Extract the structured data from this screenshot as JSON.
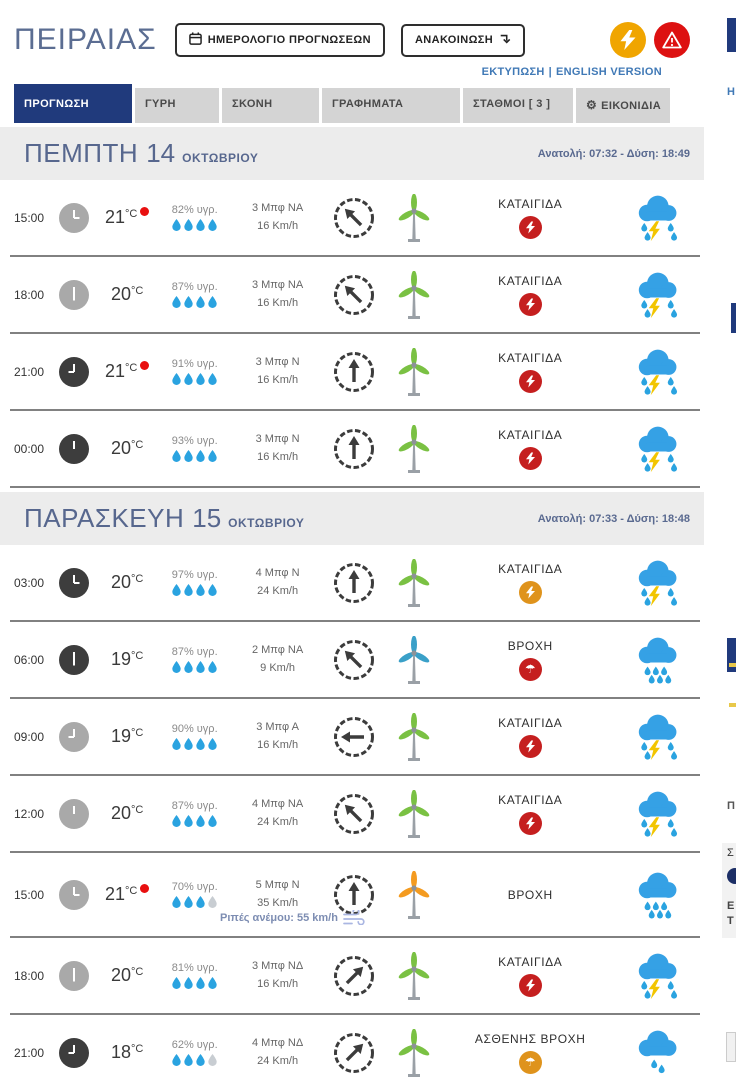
{
  "header": {
    "title": "ΠΕΙΡΑΙΑΣ",
    "calendar_button": "ΗΜΕΡΟΛΟΓΙΟ ΠΡΟΓΝΩΣΕΩΝ",
    "announcement_button": "ΑΝΑΚΟΙΝΩΣΗ",
    "print_link": "ΕΚΤΥΠΩΣΗ",
    "separator": "|",
    "english_link": "ENGLISH VERSION"
  },
  "tabs": [
    {
      "label": "ΠΡΟΓΝΩΣΗ",
      "active": true
    },
    {
      "label": "ΓΥΡΗ",
      "active": false
    },
    {
      "label": "ΣΚΟΝΗ",
      "active": false
    },
    {
      "label": "ΓΡΑΦΗΜΑΤΑ",
      "active": false
    },
    {
      "label": "ΣΤΑΘΜΟΙ [ 3 ]",
      "active": false
    },
    {
      "label": "ΕΙΚΟΝΙΔΙΑ",
      "active": false,
      "gear_icon": true
    }
  ],
  "colors": {
    "navy": "#203a7c",
    "link_blue": "#4079b6",
    "alert_orange": "#f0a500",
    "alert_red": "#dd1111",
    "badge_red": "#c51f1f",
    "badge_orange": "#df931c",
    "drop_blue": "#2aa3e0",
    "drop_gray": "#c8cdd2",
    "cloud_blue": "#35a1e5",
    "bolt_yellow": "#f2c500",
    "turbine_green": "#7ac143",
    "turbine_blue": "#3aa0c8",
    "turbine_orange": "#f49b20",
    "record_red": "#e81010"
  },
  "days": [
    {
      "name": "ΠΕΜΠΤΗ",
      "date_num": "14",
      "month": "ΟΚΤΩΒΡΙΟΥ",
      "sun": "Ανατολή: 07:32 - Δύση: 18:49",
      "rows": [
        {
          "time": "15:00",
          "clock": "day",
          "temp": "21",
          "unit": "°C",
          "record_dot": true,
          "humidity": "82% υγρ.",
          "drops_filled": 4,
          "drops_total": 4,
          "wind1": "3 Μπφ ΝΑ",
          "wind2": "16 Km/h",
          "dir_deg": -45,
          "turbine": "green",
          "condition": "ΚΑΤΑΙΓΙΔΑ",
          "badge": "red",
          "badge_glyph": "bolt",
          "wx": "storm",
          "gust": null
        },
        {
          "time": "18:00",
          "clock": "day",
          "temp": "20",
          "unit": "°C",
          "record_dot": false,
          "humidity": "87% υγρ.",
          "drops_filled": 4,
          "drops_total": 4,
          "wind1": "3 Μπφ ΝΑ",
          "wind2": "16 Km/h",
          "dir_deg": -45,
          "turbine": "green",
          "condition": "ΚΑΤΑΙΓΙΔΑ",
          "badge": "red",
          "badge_glyph": "bolt",
          "wx": "storm",
          "gust": null
        },
        {
          "time": "21:00",
          "clock": "night",
          "temp": "21",
          "unit": "°C",
          "record_dot": true,
          "humidity": "91% υγρ.",
          "drops_filled": 4,
          "drops_total": 4,
          "wind1": "3 Μπφ Ν",
          "wind2": "16 Km/h",
          "dir_deg": 0,
          "turbine": "green",
          "condition": "ΚΑΤΑΙΓΙΔΑ",
          "badge": "red",
          "badge_glyph": "bolt",
          "wx": "storm",
          "gust": null
        },
        {
          "time": "00:00",
          "clock": "night",
          "temp": "20",
          "unit": "°C",
          "record_dot": false,
          "humidity": "93% υγρ.",
          "drops_filled": 4,
          "drops_total": 4,
          "wind1": "3 Μπφ Ν",
          "wind2": "16 Km/h",
          "dir_deg": 0,
          "turbine": "green",
          "condition": "ΚΑΤΑΙΓΙΔΑ",
          "badge": "red",
          "badge_glyph": "bolt",
          "wx": "storm",
          "gust": null
        }
      ]
    },
    {
      "name": "ΠΑΡΑΣΚΕΥΗ",
      "date_num": "15",
      "month": "ΟΚΤΩΒΡΙΟΥ",
      "sun": "Ανατολή: 07:33 - Δύση: 18:48",
      "rows": [
        {
          "time": "03:00",
          "clock": "night",
          "temp": "20",
          "unit": "°C",
          "record_dot": false,
          "humidity": "97% υγρ.",
          "drops_filled": 4,
          "drops_total": 4,
          "wind1": "4 Μπφ Ν",
          "wind2": "24 Km/h",
          "dir_deg": 0,
          "turbine": "green",
          "condition": "ΚΑΤΑΙΓΙΔΑ",
          "badge": "orange",
          "badge_glyph": "bolt",
          "wx": "storm",
          "gust": null
        },
        {
          "time": "06:00",
          "clock": "night",
          "temp": "19",
          "unit": "°C",
          "record_dot": false,
          "humidity": "87% υγρ.",
          "drops_filled": 4,
          "drops_total": 4,
          "wind1": "2 Μπφ ΝΑ",
          "wind2": "9 Km/h",
          "dir_deg": -45,
          "turbine": "blue",
          "condition": "ΒΡΟΧΗ",
          "badge": "red",
          "badge_glyph": "umbrella",
          "wx": "rain",
          "gust": null
        },
        {
          "time": "09:00",
          "clock": "day",
          "temp": "19",
          "unit": "°C",
          "record_dot": false,
          "humidity": "90% υγρ.",
          "drops_filled": 4,
          "drops_total": 4,
          "wind1": "3 Μπφ Α",
          "wind2": "16 Km/h",
          "dir_deg": -90,
          "turbine": "green",
          "condition": "ΚΑΤΑΙΓΙΔΑ",
          "badge": "red",
          "badge_glyph": "bolt",
          "wx": "storm",
          "gust": null
        },
        {
          "time": "12:00",
          "clock": "day",
          "temp": "20",
          "unit": "°C",
          "record_dot": false,
          "humidity": "87% υγρ.",
          "drops_filled": 4,
          "drops_total": 4,
          "wind1": "4 Μπφ ΝΑ",
          "wind2": "24 Km/h",
          "dir_deg": -45,
          "turbine": "green",
          "condition": "ΚΑΤΑΙΓΙΔΑ",
          "badge": "red",
          "badge_glyph": "bolt",
          "wx": "storm",
          "gust": null
        },
        {
          "time": "15:00",
          "clock": "day",
          "temp": "21",
          "unit": "°C",
          "record_dot": true,
          "humidity": "70% υγρ.",
          "drops_filled": 3,
          "drops_total": 4,
          "wind1": "5 Μπφ Ν",
          "wind2": "35 Km/h",
          "dir_deg": 0,
          "turbine": "orange",
          "condition": "ΒΡΟΧΗ",
          "badge": null,
          "badge_glyph": null,
          "wx": "rain",
          "gust": "Ριπές ανέμου: 55 km/h"
        },
        {
          "time": "18:00",
          "clock": "day",
          "temp": "20",
          "unit": "°C",
          "record_dot": false,
          "humidity": "81% υγρ.",
          "drops_filled": 4,
          "drops_total": 4,
          "wind1": "3 Μπφ ΝΔ",
          "wind2": "16 Km/h",
          "dir_deg": 45,
          "turbine": "green",
          "condition": "ΚΑΤΑΙΓΙΔΑ",
          "badge": "red",
          "badge_glyph": "bolt",
          "wx": "storm",
          "gust": null
        },
        {
          "time": "21:00",
          "clock": "night",
          "temp": "18",
          "unit": "°C",
          "record_dot": false,
          "humidity": "62% υγρ.",
          "drops_filled": 3,
          "drops_total": 4,
          "wind1": "4 Μπφ ΝΔ",
          "wind2": "24 Km/h",
          "dir_deg": 45,
          "turbine": "green",
          "condition": "ΑΣΘΕΝΗΣ ΒΡΟΧΗ",
          "badge": "orange",
          "badge_glyph": "umbrella",
          "wx": "light-rain",
          "gust": null
        }
      ]
    }
  ],
  "right_edge": {
    "fragments": [
      "Η",
      "Π",
      "Σ",
      "Ε",
      "Τ"
    ]
  }
}
